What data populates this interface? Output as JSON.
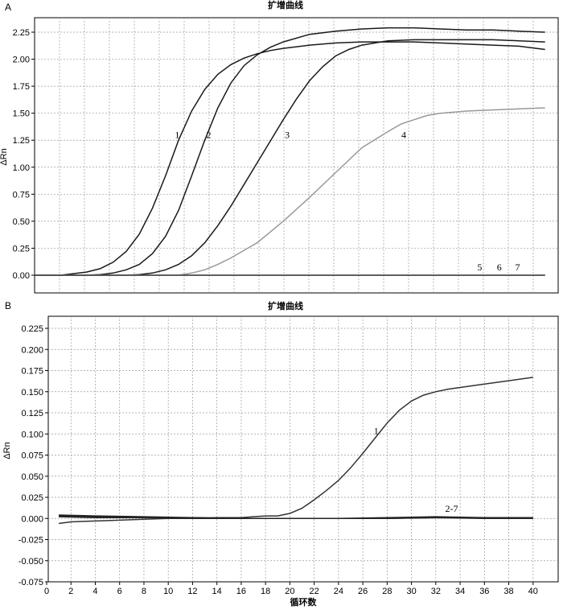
{
  "chart_data": [
    {
      "panel": "A",
      "type": "line",
      "title": "扩增曲线",
      "ylabel": "ΔRn",
      "xlabel": "",
      "xlim": [
        1,
        41
      ],
      "ylim": [
        0,
        2.25
      ],
      "yticks": [
        0.0,
        0.25,
        0.5,
        0.75,
        1.0,
        1.25,
        1.5,
        1.75,
        2.0,
        2.25
      ],
      "ytick_labels": [
        "0.00",
        "0.25",
        "0.50",
        "0.75",
        "1.00",
        "1.25",
        "1.50",
        "1.75",
        "2.00",
        "2.25"
      ],
      "grid": true,
      "series": [
        {
          "name": "1",
          "color": "#1a1a1a",
          "x": [
            1,
            3,
            5,
            6,
            7,
            8,
            9,
            10,
            11,
            12,
            13,
            14,
            15,
            16,
            17,
            18,
            19,
            20,
            22,
            24,
            26,
            28,
            30,
            32,
            34,
            36,
            38,
            40
          ],
          "y": [
            0,
            0,
            0.03,
            0.06,
            0.12,
            0.22,
            0.38,
            0.62,
            0.92,
            1.25,
            1.52,
            1.72,
            1.86,
            1.95,
            2.01,
            2.05,
            2.08,
            2.1,
            2.13,
            2.15,
            2.16,
            2.16,
            2.16,
            2.15,
            2.14,
            2.13,
            2.12,
            2.09
          ]
        },
        {
          "name": "2",
          "color": "#1a1a1a",
          "x": [
            1,
            5,
            6,
            7,
            8,
            9,
            10,
            11,
            12,
            13,
            14,
            15,
            16,
            17,
            18,
            19,
            20,
            22,
            24,
            26,
            28,
            30,
            32,
            34,
            36,
            38,
            40
          ],
          "y": [
            0,
            0,
            0.005,
            0.02,
            0.05,
            0.1,
            0.2,
            0.36,
            0.6,
            0.92,
            1.25,
            1.55,
            1.78,
            1.94,
            2.04,
            2.11,
            2.16,
            2.23,
            2.26,
            2.28,
            2.29,
            2.29,
            2.28,
            2.27,
            2.27,
            2.26,
            2.25
          ]
        },
        {
          "name": "3",
          "color": "#1a1a1a",
          "x": [
            1,
            8,
            9,
            10,
            11,
            12,
            13,
            14,
            15,
            16,
            17,
            18,
            19,
            20,
            21,
            22,
            23,
            24,
            25,
            26,
            27,
            28,
            30,
            32,
            34,
            36,
            38,
            40
          ],
          "y": [
            0,
            0,
            0.005,
            0.02,
            0.05,
            0.1,
            0.18,
            0.3,
            0.46,
            0.64,
            0.84,
            1.04,
            1.24,
            1.44,
            1.63,
            1.8,
            1.93,
            2.03,
            2.09,
            2.13,
            2.15,
            2.17,
            2.18,
            2.18,
            2.18,
            2.18,
            2.17,
            2.16
          ]
        },
        {
          "name": "4",
          "color": "#999999",
          "x": [
            12,
            13,
            14,
            15,
            16,
            17,
            18,
            20,
            22,
            24,
            26,
            28,
            29,
            30,
            31,
            32,
            34,
            36,
            38,
            40
          ],
          "y": [
            0,
            0.02,
            0.05,
            0.1,
            0.16,
            0.23,
            0.3,
            0.5,
            0.72,
            0.95,
            1.18,
            1.33,
            1.4,
            1.44,
            1.48,
            1.5,
            1.52,
            1.53,
            1.54,
            1.55
          ]
        },
        {
          "name": "5",
          "color": "#555555",
          "x": [
            1,
            40
          ],
          "y": [
            0,
            0
          ]
        },
        {
          "name": "6",
          "color": "#555555",
          "x": [
            1,
            40
          ],
          "y": [
            0,
            0
          ]
        },
        {
          "name": "7",
          "color": "#555555",
          "x": [
            1,
            40
          ],
          "y": [
            0,
            0
          ]
        }
      ]
    },
    {
      "panel": "B",
      "type": "line",
      "title": "扩增曲线",
      "ylabel": "ΔRn",
      "xlabel": "循环数",
      "xlim": [
        0,
        42
      ],
      "ylim": [
        -0.075,
        0.225
      ],
      "xticks": [
        0,
        2,
        4,
        6,
        8,
        10,
        12,
        14,
        16,
        18,
        20,
        22,
        24,
        26,
        28,
        30,
        32,
        34,
        36,
        38,
        40
      ],
      "xtick_labels": [
        "0",
        "2",
        "4",
        "6",
        "8",
        "10",
        "12",
        "14",
        "16",
        "18",
        "20",
        "22",
        "24",
        "26",
        "28",
        "30",
        "32",
        "34",
        "36",
        "38",
        "40"
      ],
      "yticks": [
        -0.075,
        -0.05,
        -0.025,
        0.0,
        0.025,
        0.05,
        0.075,
        0.1,
        0.125,
        0.15,
        0.175,
        0.2,
        0.225
      ],
      "ytick_labels": [
        "-0.075",
        "-0.050",
        "-0.025",
        "0.000",
        "0.025",
        "0.050",
        "0.075",
        "0.100",
        "0.125",
        "0.150",
        "0.175",
        "0.200",
        "0.225"
      ],
      "grid": true,
      "series": [
        {
          "name": "1",
          "color": "#333333",
          "x": [
            1,
            2,
            4,
            6,
            8,
            10,
            12,
            14,
            16,
            17,
            18,
            19,
            20,
            21,
            22,
            23,
            24,
            25,
            26,
            27,
            28,
            29,
            30,
            31,
            32,
            33,
            34,
            36,
            38,
            40
          ],
          "y": [
            -0.006,
            -0.004,
            -0.003,
            -0.002,
            -0.001,
            0,
            0,
            0.001,
            0.001,
            0.002,
            0.003,
            0.003,
            0.006,
            0.012,
            0.022,
            0.033,
            0.045,
            0.06,
            0.077,
            0.095,
            0.113,
            0.128,
            0.139,
            0.146,
            0.15,
            0.153,
            0.155,
            0.159,
            0.163,
            0.167
          ]
        },
        {
          "name": "2-7",
          "color": "#222222",
          "x": [
            1,
            4,
            8,
            12,
            16,
            20,
            24,
            28,
            32,
            36,
            40
          ],
          "y": [
            0.004,
            0.003,
            0.002,
            0.001,
            0,
            0,
            0,
            0.001,
            0.002,
            0.001,
            0.001
          ]
        },
        {
          "name": "",
          "color": "#222222",
          "x": [
            1,
            4,
            8,
            12,
            16,
            20,
            24,
            28,
            32,
            36,
            40
          ],
          "y": [
            0.003,
            0.002,
            0.001,
            0.001,
            0,
            0,
            0,
            0,
            0.001,
            0.001,
            0
          ]
        },
        {
          "name": "",
          "color": "#222222",
          "x": [
            1,
            4,
            8,
            12,
            16,
            20,
            24,
            28,
            32,
            36,
            40
          ],
          "y": [
            0.002,
            0.001,
            0.001,
            0,
            0,
            0,
            0,
            0,
            0.001,
            0,
            0
          ]
        }
      ]
    }
  ],
  "panels": {
    "a": "A",
    "b": "B"
  }
}
